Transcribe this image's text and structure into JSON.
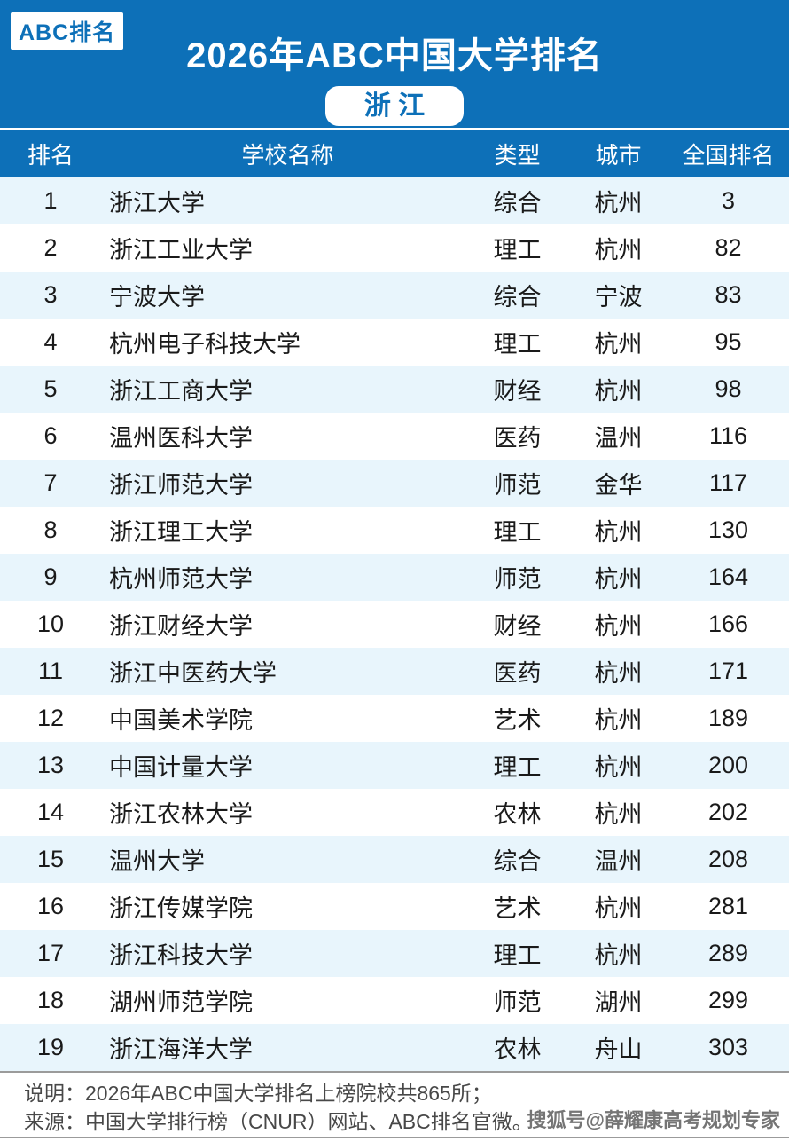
{
  "colors": {
    "primary_blue": "#0d70b8",
    "row_alt": "#e8f5fc",
    "row_white": "#ffffff",
    "text_dark": "#1a1a1a",
    "footer_text": "#484848",
    "divider_gray": "#9b9b9b",
    "watermark_gray": "#757575"
  },
  "banner": {
    "badge": "ABC排名",
    "title": "2026年ABC中国大学排名",
    "province": "浙 江"
  },
  "chart_data": {
    "type": "table",
    "title": "2026年ABC中国大学排名",
    "subtitle": "浙江",
    "columns": [
      "排名",
      "学校名称",
      "类型",
      "城市",
      "全国排名"
    ],
    "rows": [
      [
        1,
        "浙江大学",
        "综合",
        "杭州",
        3
      ],
      [
        2,
        "浙江工业大学",
        "理工",
        "杭州",
        82
      ],
      [
        3,
        "宁波大学",
        "综合",
        "宁波",
        83
      ],
      [
        4,
        "杭州电子科技大学",
        "理工",
        "杭州",
        95
      ],
      [
        5,
        "浙江工商大学",
        "财经",
        "杭州",
        98
      ],
      [
        6,
        "温州医科大学",
        "医药",
        "温州",
        116
      ],
      [
        7,
        "浙江师范大学",
        "师范",
        "金华",
        117
      ],
      [
        8,
        "浙江理工大学",
        "理工",
        "杭州",
        130
      ],
      [
        9,
        "杭州师范大学",
        "师范",
        "杭州",
        164
      ],
      [
        10,
        "浙江财经大学",
        "财经",
        "杭州",
        166
      ],
      [
        11,
        "浙江中医药大学",
        "医药",
        "杭州",
        171
      ],
      [
        12,
        "中国美术学院",
        "艺术",
        "杭州",
        189
      ],
      [
        13,
        "中国计量大学",
        "理工",
        "杭州",
        200
      ],
      [
        14,
        "浙江农林大学",
        "农林",
        "杭州",
        202
      ],
      [
        15,
        "温州大学",
        "综合",
        "温州",
        208
      ],
      [
        16,
        "浙江传媒学院",
        "艺术",
        "杭州",
        281
      ],
      [
        17,
        "浙江科技大学",
        "理工",
        "杭州",
        289
      ],
      [
        18,
        "湖州师范学院",
        "师范",
        "湖州",
        299
      ],
      [
        19,
        "浙江海洋大学",
        "农林",
        "舟山",
        303
      ]
    ]
  },
  "footer": {
    "note": "说明：2026年ABC中国大学排名上榜院校共865所；",
    "source": "来源：中国大学排行榜（CNUR）网站、ABC排名官微。",
    "watermark": "搜狐号@薛耀康高考规划专家"
  }
}
